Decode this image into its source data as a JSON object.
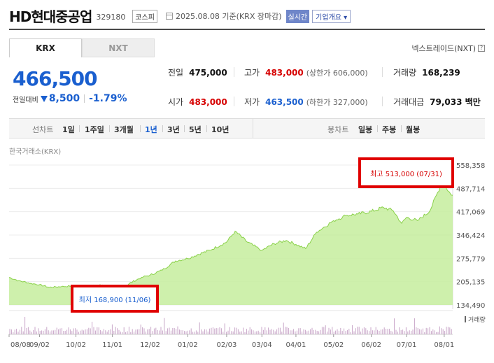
{
  "header": {
    "name": "HD현대중공업",
    "code": "329180",
    "market": "코스피",
    "as_of": "2025.08.08 기준(KRX 장마감)",
    "realtime": "실시간",
    "overview": "기업개요 ▾"
  },
  "exchange_tabs": [
    {
      "label": "KRX",
      "active": true
    },
    {
      "label": "NXT",
      "active": false
    }
  ],
  "nxt_trade": {
    "label": "넥스트레이드(NXT)",
    "icon": "?"
  },
  "quote": {
    "price": "466,500",
    "change_label": "전일대비",
    "change": "8,500",
    "change_pct": "-1.79%",
    "color_down": "#1a5fcf",
    "color_up": "#d60000"
  },
  "stats": {
    "prev_close": {
      "label": "전일",
      "value": "475,000"
    },
    "high": {
      "label": "고가",
      "value": "483,000",
      "sub": "(상한가 606,000)"
    },
    "volume": {
      "label": "거래량",
      "value": "168,239"
    },
    "open": {
      "label": "시가",
      "value": "483,000"
    },
    "low": {
      "label": "저가",
      "value": "463,500",
      "sub": "(하한가 327,000)"
    },
    "amount": {
      "label": "거래대금",
      "value": "79,033 백만"
    }
  },
  "period_bar": {
    "line_title": "선차트",
    "line_periods": [
      "1일",
      "1주일",
      "3개월",
      "1년",
      "3년",
      "5년",
      "10년"
    ],
    "active_period": "1년",
    "candle_title": "봉차트",
    "candle_periods": [
      "일봉",
      "주봉",
      "월봉"
    ]
  },
  "chart_data": {
    "type": "area",
    "source": "한국거래소(KRX)",
    "y_ticks": [
      "558,358",
      "487,714",
      "417,069",
      "346,424",
      "275,779",
      "205,135",
      "134,490"
    ],
    "y_tick_values": [
      558358,
      487714,
      417069,
      346424,
      275779,
      205135,
      134490
    ],
    "ylim": [
      134490,
      558358
    ],
    "x_ticks": [
      "08/08",
      "09/02",
      "10/02",
      "11/01",
      "12/02",
      "01/02",
      "02/03",
      "03/04",
      "04/01",
      "05/02",
      "06/02",
      "07/01",
      "08/01"
    ],
    "price_series": [
      {
        "x": "2024-08-08",
        "y": 218000
      },
      {
        "x": "2024-08-16",
        "y": 208000
      },
      {
        "x": "2024-08-26",
        "y": 200000
      },
      {
        "x": "2024-09-02",
        "y": 196000
      },
      {
        "x": "2024-09-10",
        "y": 188000
      },
      {
        "x": "2024-09-20",
        "y": 190000
      },
      {
        "x": "2024-10-02",
        "y": 193000
      },
      {
        "x": "2024-10-14",
        "y": 192000
      },
      {
        "x": "2024-10-24",
        "y": 195000
      },
      {
        "x": "2024-11-01",
        "y": 186000
      },
      {
        "x": "2024-11-06",
        "y": 168900
      },
      {
        "x": "2024-11-15",
        "y": 200000
      },
      {
        "x": "2024-11-25",
        "y": 218000
      },
      {
        "x": "2024-12-02",
        "y": 225000
      },
      {
        "x": "2024-12-12",
        "y": 240000
      },
      {
        "x": "2024-12-23",
        "y": 268000
      },
      {
        "x": "2025-01-02",
        "y": 275000
      },
      {
        "x": "2025-01-10",
        "y": 287000
      },
      {
        "x": "2025-01-20",
        "y": 300000
      },
      {
        "x": "2025-02-03",
        "y": 325000
      },
      {
        "x": "2025-02-10",
        "y": 358000
      },
      {
        "x": "2025-02-20",
        "y": 325000
      },
      {
        "x": "2025-03-04",
        "y": 300000
      },
      {
        "x": "2025-03-14",
        "y": 320000
      },
      {
        "x": "2025-03-24",
        "y": 330000
      },
      {
        "x": "2025-04-01",
        "y": 318000
      },
      {
        "x": "2025-04-09",
        "y": 305000
      },
      {
        "x": "2025-04-18",
        "y": 355000
      },
      {
        "x": "2025-05-02",
        "y": 390000
      },
      {
        "x": "2025-05-12",
        "y": 405000
      },
      {
        "x": "2025-05-22",
        "y": 410000
      },
      {
        "x": "2025-06-02",
        "y": 418000
      },
      {
        "x": "2025-06-12",
        "y": 430000
      },
      {
        "x": "2025-06-20",
        "y": 420000
      },
      {
        "x": "2025-06-27",
        "y": 382000
      },
      {
        "x": "2025-07-01",
        "y": 400000
      },
      {
        "x": "2025-07-10",
        "y": 390000
      },
      {
        "x": "2025-07-20",
        "y": 418000
      },
      {
        "x": "2025-07-31",
        "y": 513000
      },
      {
        "x": "2025-08-04",
        "y": 480000
      },
      {
        "x": "2025-08-08",
        "y": 466500
      }
    ],
    "high_annotation": "최고 513,000 (07/31)",
    "low_annotation": "최저 168,900 (11/06)",
    "volume_label": "거래량",
    "fill_color": "#c5ed9d",
    "line_color": "#8ad14a",
    "grid": true
  }
}
